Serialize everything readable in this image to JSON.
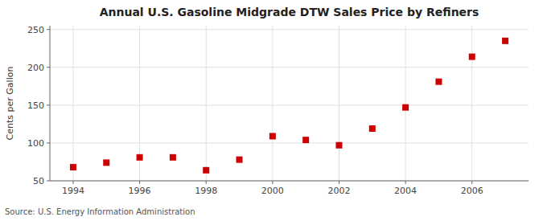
{
  "chart_data": {
    "type": "scatter",
    "title": "Annual U.S. Gasoline Midgrade DTW Sales Price by Refiners",
    "ylabel": "Cents per Gallon",
    "source": "Source: U.S. Energy Information Administration",
    "x": [
      1994,
      1995,
      1996,
      1997,
      1998,
      1999,
      2000,
      2001,
      2002,
      2003,
      2004,
      2005,
      2006,
      2007
    ],
    "values": [
      68,
      74,
      81,
      81,
      64,
      78,
      109,
      104,
      97,
      119,
      147,
      181,
      214,
      235
    ],
    "xlim": [
      1993.3,
      2007.7
    ],
    "ylim": [
      50,
      255
    ],
    "xticks": [
      1994,
      1996,
      1998,
      2000,
      2002,
      2004,
      2006
    ],
    "yticks": [
      50,
      100,
      150,
      200,
      250
    ],
    "color": "#cc0000",
    "marker": "square",
    "grid": true
  }
}
